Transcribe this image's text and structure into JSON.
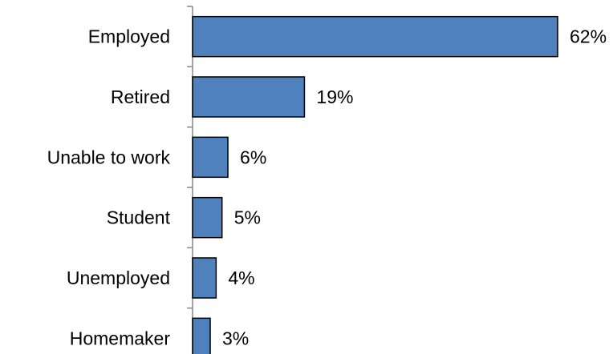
{
  "chart_data": {
    "type": "bar",
    "orientation": "horizontal",
    "categories": [
      "Employed",
      "Retired",
      "Unable to work",
      "Student",
      "Unemployed",
      "Homemaker"
    ],
    "values": [
      62,
      19,
      6,
      5,
      4,
      3
    ],
    "value_labels": [
      "62%",
      "19%",
      "6%",
      "5%",
      "4%",
      "3%"
    ],
    "unit": "%",
    "xlim": [
      0,
      62
    ],
    "grid": false,
    "legend": "none",
    "colors": {
      "bar_fill": "#4f81bd",
      "bar_stroke": "#000000",
      "axis": "#868686"
    }
  }
}
